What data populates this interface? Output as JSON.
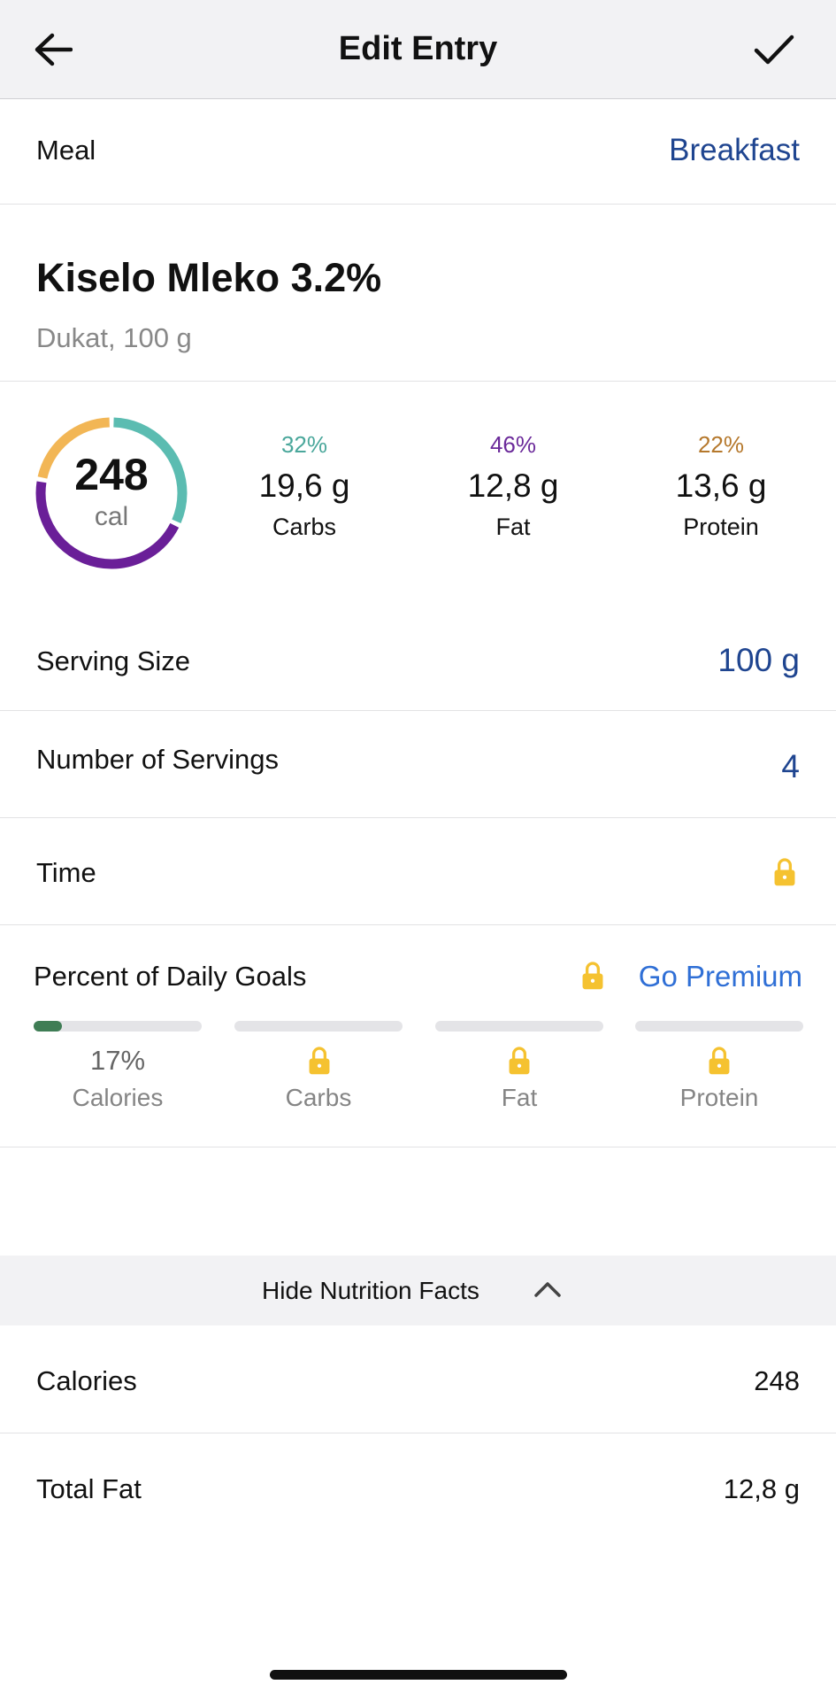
{
  "header": {
    "title": "Edit Entry",
    "back_icon": "arrow-left-icon",
    "confirm_icon": "checkmark-icon"
  },
  "meal": {
    "label": "Meal",
    "value": "Breakfast"
  },
  "food": {
    "name": "Kiselo Mleko 3.2%",
    "detail": "Dukat, 100 g"
  },
  "summary": {
    "calories": "248",
    "calories_unit": "cal",
    "macros": [
      {
        "percent": "32%",
        "amount": "19,6 g",
        "name": "Carbs",
        "color": "#4aa79b",
        "ring_color": "#5bbcb1",
        "fraction": 0.32
      },
      {
        "percent": "46%",
        "amount": "12,8 g",
        "name": "Fat",
        "color": "#6b2a9a",
        "ring_color": "#6a1f98",
        "fraction": 0.46
      },
      {
        "percent": "22%",
        "amount": "13,6 g",
        "name": "Protein",
        "color": "#b5782c",
        "ring_color": "#f2b655",
        "fraction": 0.22
      }
    ]
  },
  "serving_size": {
    "label": "Serving Size",
    "value": "100 g"
  },
  "servings": {
    "label": "Number of Servings",
    "value": "4"
  },
  "time": {
    "label": "Time",
    "icon": "lock-icon"
  },
  "daily_goals": {
    "title": "Percent of Daily Goals",
    "premium_label": "Go Premium",
    "items": [
      {
        "name": "Calories",
        "value": "17%",
        "progress": 0.17,
        "locked": false
      },
      {
        "name": "Carbs",
        "locked": true
      },
      {
        "name": "Fat",
        "locked": true
      },
      {
        "name": "Protein",
        "locked": true
      }
    ]
  },
  "nutrition_toggle": {
    "label": "Hide Nutrition Facts",
    "icon": "chevron-up-icon"
  },
  "nutrition": [
    {
      "label": "Calories",
      "value": "248"
    },
    {
      "label": "Total Fat",
      "value": "12,8 g"
    }
  ],
  "colors": {
    "link": "#1f4590",
    "premium": "#2f6fd6",
    "lock": "#f5c230",
    "progress": "#3f7d55"
  }
}
